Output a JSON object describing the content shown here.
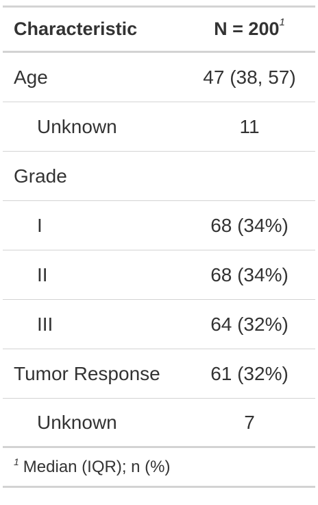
{
  "table": {
    "header": {
      "characteristic": "Characteristic",
      "n_label": "N = 200",
      "n_footnote_mark": "1"
    },
    "rows": [
      {
        "label": "Age",
        "value": "47 (38, 57)",
        "indent": false
      },
      {
        "label": "Unknown",
        "value": "11",
        "indent": true
      },
      {
        "label": "Grade",
        "value": "",
        "indent": false
      },
      {
        "label": "I",
        "value": "68 (34%)",
        "indent": true
      },
      {
        "label": "II",
        "value": "68 (34%)",
        "indent": true
      },
      {
        "label": "III",
        "value": "64 (32%)",
        "indent": true
      },
      {
        "label": "Tumor Response",
        "value": "61 (32%)",
        "indent": false
      },
      {
        "label": "Unknown",
        "value": "7",
        "indent": true
      }
    ],
    "footnote": {
      "mark": "1",
      "text": "Median (IQR); n (%)"
    }
  }
}
